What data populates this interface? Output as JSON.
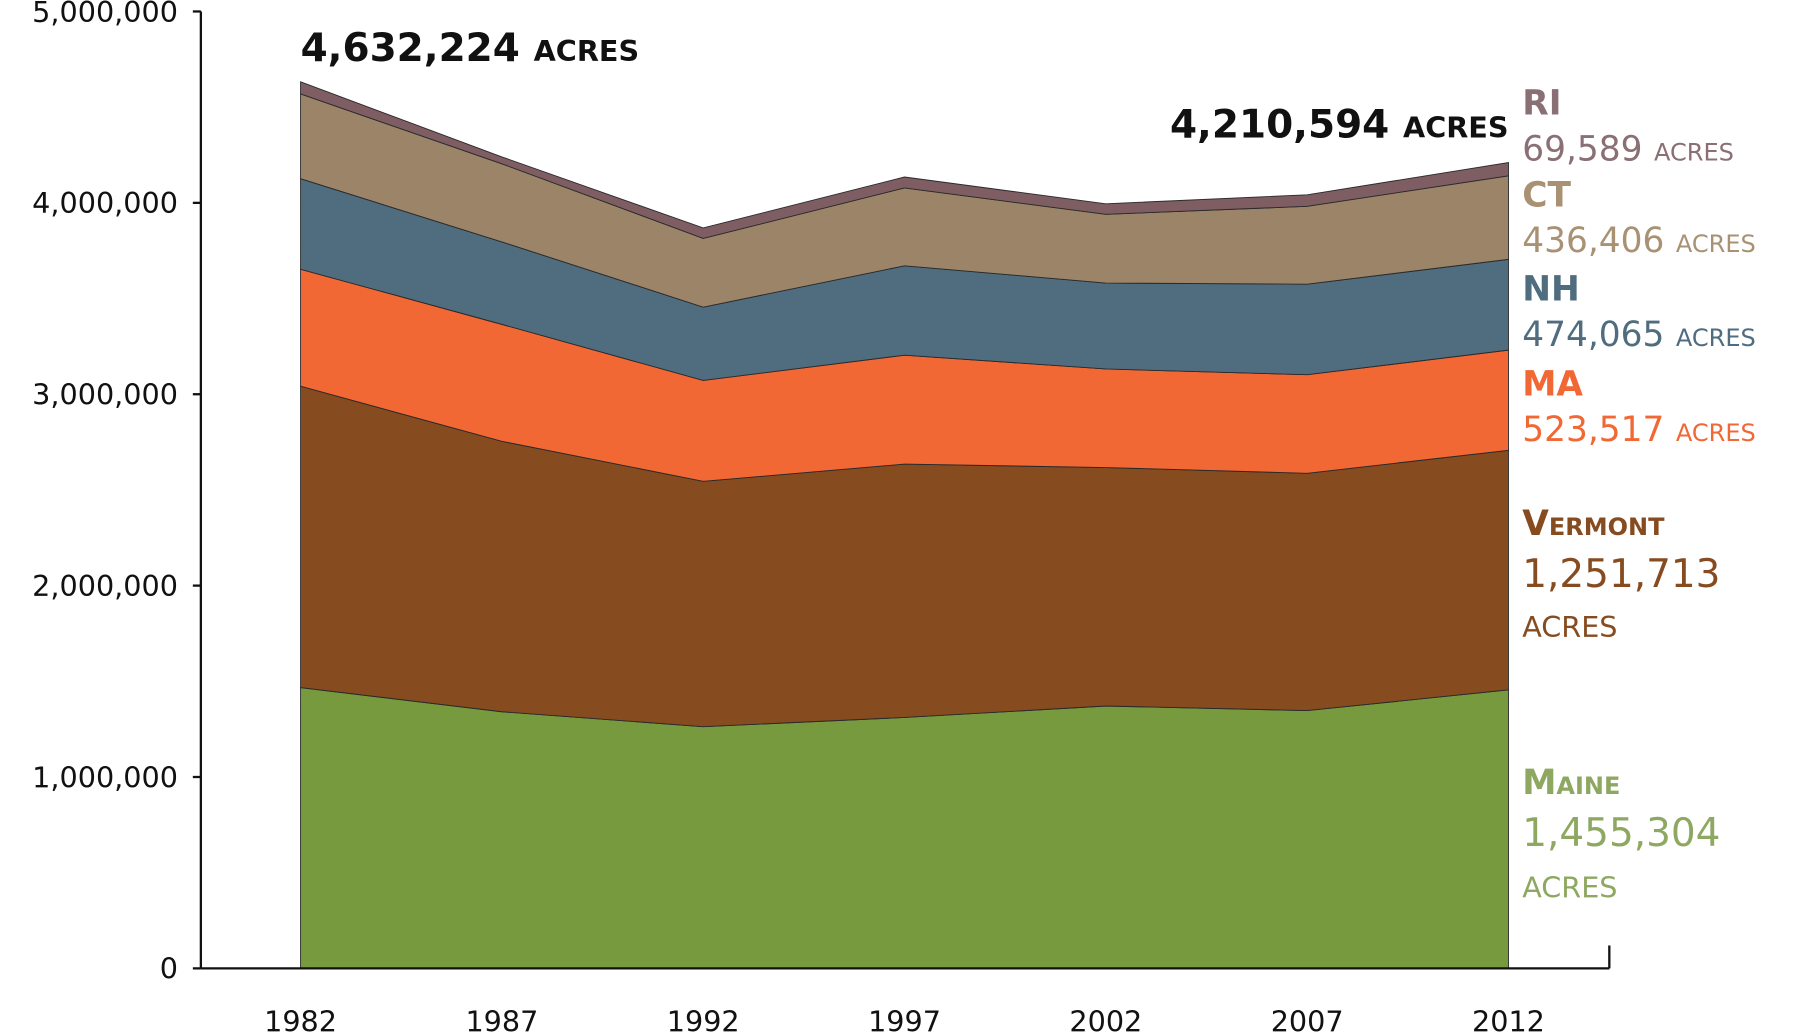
{
  "chart_data": {
    "type": "area",
    "stacked": true,
    "categories": [
      "1982",
      "1987",
      "1992",
      "1997",
      "2002",
      "2007",
      "2012"
    ],
    "ylim": [
      0,
      5000000
    ],
    "yticks": [
      0,
      {
        "value": 1000000,
        "label": "1,000,000"
      },
      {
        "value": 2000000,
        "label": "2,000,000"
      },
      {
        "value": 3000000,
        "label": "3,000,000"
      },
      {
        "value": 4000000,
        "label": "4,000,000"
      },
      {
        "value": 5000000,
        "label": "5,000,000"
      }
    ],
    "unit": "acres",
    "annotations": [
      "4,632,224",
      "4,210,594"
    ],
    "series": [
      {
        "name": "Maine",
        "color": "#789a3e",
        "label_color": "#8ea862",
        "values": [
          1467000,
          1341000,
          1263000,
          1311000,
          1371000,
          1347000,
          1455304
        ],
        "value_label": "1,455,304"
      },
      {
        "name": "Vermont",
        "color": "#874b20",
        "label_color": "#874b20",
        "values": [
          1575000,
          1413000,
          1282000,
          1324000,
          1246000,
          1240000,
          1251713
        ],
        "value_label": "1,251,713"
      },
      {
        "name": "MA",
        "color": "#f26835",
        "label_color": "#f26835",
        "values": [
          611000,
          611000,
          527000,
          569000,
          515000,
          515000,
          523517
        ],
        "value_label": "523,517"
      },
      {
        "name": "NH",
        "color": "#4f6d7f",
        "label_color": "#4f6d7f",
        "values": [
          473000,
          431000,
          383000,
          467000,
          449000,
          473000,
          474065
        ],
        "value_label": "474,065"
      },
      {
        "name": "CT",
        "color": "#9c8468",
        "label_color": "#a89273",
        "values": [
          443000,
          408000,
          359000,
          407000,
          359000,
          407000,
          436406
        ],
        "value_label": "436,406"
      },
      {
        "name": "RI",
        "color": "#7e5d63",
        "label_color": "#8a7075",
        "values": [
          63224,
          36000,
          55000,
          57000,
          55000,
          60000,
          69589
        ],
        "value_label": "69,589"
      }
    ]
  }
}
